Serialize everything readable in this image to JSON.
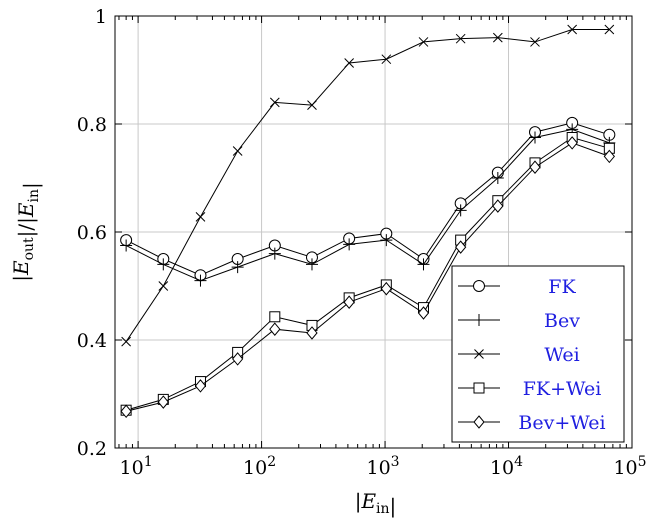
{
  "chart_data": {
    "type": "line",
    "title": "",
    "xlabel": "|E_in|",
    "ylabel": "|E_out|/|E_in|",
    "x_scale": "log",
    "xlim": [
      6.5,
      100000
    ],
    "ylim": [
      0.2,
      1.0
    ],
    "x_ticks": [
      {
        "base": "10",
        "exp": "1",
        "value": 10
      },
      {
        "base": "10",
        "exp": "2",
        "value": 100
      },
      {
        "base": "10",
        "exp": "3",
        "value": 1000
      },
      {
        "base": "10",
        "exp": "4",
        "value": 10000
      },
      {
        "base": "10",
        "exp": "5",
        "value": 100000
      }
    ],
    "y_ticks": [
      {
        "label": "0.2",
        "value": 0.2
      },
      {
        "label": "0.4",
        "value": 0.4
      },
      {
        "label": "0.6",
        "value": 0.6
      },
      {
        "label": "0.8",
        "value": 0.8
      },
      {
        "label": "1",
        "value": 1.0
      }
    ],
    "grid": true,
    "legend_position": "bottom-right",
    "x": [
      8,
      16,
      32,
      64,
      128,
      256,
      512,
      1024,
      2048,
      4096,
      8192,
      16384,
      32768,
      65536
    ],
    "series": [
      {
        "name": "FK",
        "marker": "circle",
        "values": [
          0.585,
          0.55,
          0.52,
          0.55,
          0.575,
          0.553,
          0.588,
          0.597,
          0.55,
          0.653,
          0.71,
          0.785,
          0.802,
          0.78
        ]
      },
      {
        "name": "Bev",
        "marker": "plus",
        "values": [
          0.575,
          0.54,
          0.51,
          0.535,
          0.56,
          0.54,
          0.577,
          0.585,
          0.54,
          0.64,
          0.7,
          0.775,
          0.79,
          0.765
        ]
      },
      {
        "name": "Wei",
        "marker": "cross",
        "values": [
          0.397,
          0.5,
          0.628,
          0.75,
          0.84,
          0.835,
          0.913,
          0.92,
          0.952,
          0.958,
          0.96,
          0.952,
          0.975,
          0.975
        ]
      },
      {
        "name": "FK+Wei",
        "marker": "square",
        "values": [
          0.27,
          0.29,
          0.323,
          0.377,
          0.443,
          0.427,
          0.478,
          0.502,
          0.46,
          0.585,
          0.658,
          0.728,
          0.775,
          0.755
        ]
      },
      {
        "name": "Bev+Wei",
        "marker": "diamond",
        "values": [
          0.268,
          0.285,
          0.315,
          0.365,
          0.42,
          0.413,
          0.47,
          0.495,
          0.45,
          0.572,
          0.648,
          0.72,
          0.765,
          0.74
        ]
      }
    ]
  }
}
